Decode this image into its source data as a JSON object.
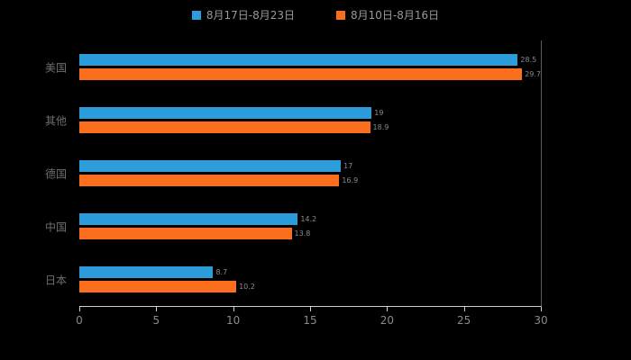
{
  "background": "#000000",
  "legend": [
    {
      "label": "8月17日-8月23日",
      "color": "#2D9CDB"
    },
    {
      "label": "8月10日-8月16日",
      "color": "#FA6E1E"
    }
  ],
  "chart_data": {
    "type": "bar",
    "orientation": "horizontal",
    "title": "",
    "categories": [
      "美国",
      "其他",
      "德国",
      "中国",
      "日本"
    ],
    "series": [
      {
        "name": "8月17日-8月23日",
        "color": "#2D9CDB",
        "values": [
          28.5,
          19,
          17,
          14.2,
          8.7
        ]
      },
      {
        "name": "8月10日-8月16日",
        "color": "#FA6E1E",
        "values": [
          29.7,
          18.9,
          16.9,
          13.8,
          10.2
        ]
      }
    ],
    "xlabel": "",
    "ylabel": "",
    "xlim": [
      0,
      30
    ],
    "x_ticks": [
      0,
      5,
      10,
      15,
      20,
      25,
      30
    ],
    "grid": false,
    "legend_position": "top",
    "value_labels_shown": true
  }
}
